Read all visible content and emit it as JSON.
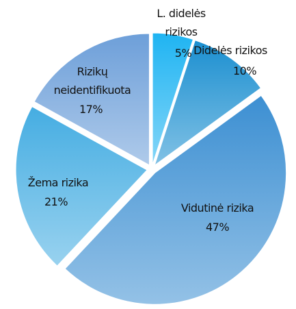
{
  "chart_data": {
    "type": "pie",
    "categories": [
      "L. didelės rizikos",
      "Didelės rizikos",
      "Vidutinė rizika",
      "Žema rizika",
      "Rizikų neidentifikuota"
    ],
    "values": [
      5,
      10,
      47,
      21,
      17
    ],
    "value_labels": [
      "5%",
      "10%",
      "47%",
      "21%",
      "17%"
    ],
    "colors": [
      "#1fb4f2",
      "#1b8fd0",
      "#3c8fd2",
      "#45ade2",
      "#6d9fd9"
    ]
  }
}
